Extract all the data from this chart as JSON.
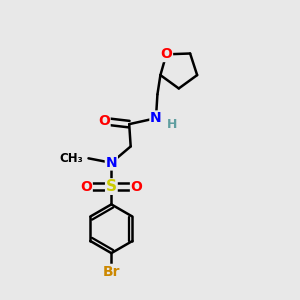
{
  "background_color": "#e8e8e8",
  "bond_width": 1.8,
  "colors": {
    "C": "#000000",
    "N": "#0000ff",
    "O": "#ff0000",
    "S": "#cccc00",
    "Br": "#cc8800",
    "H": "#5f9ea0",
    "bond": "#000000"
  }
}
